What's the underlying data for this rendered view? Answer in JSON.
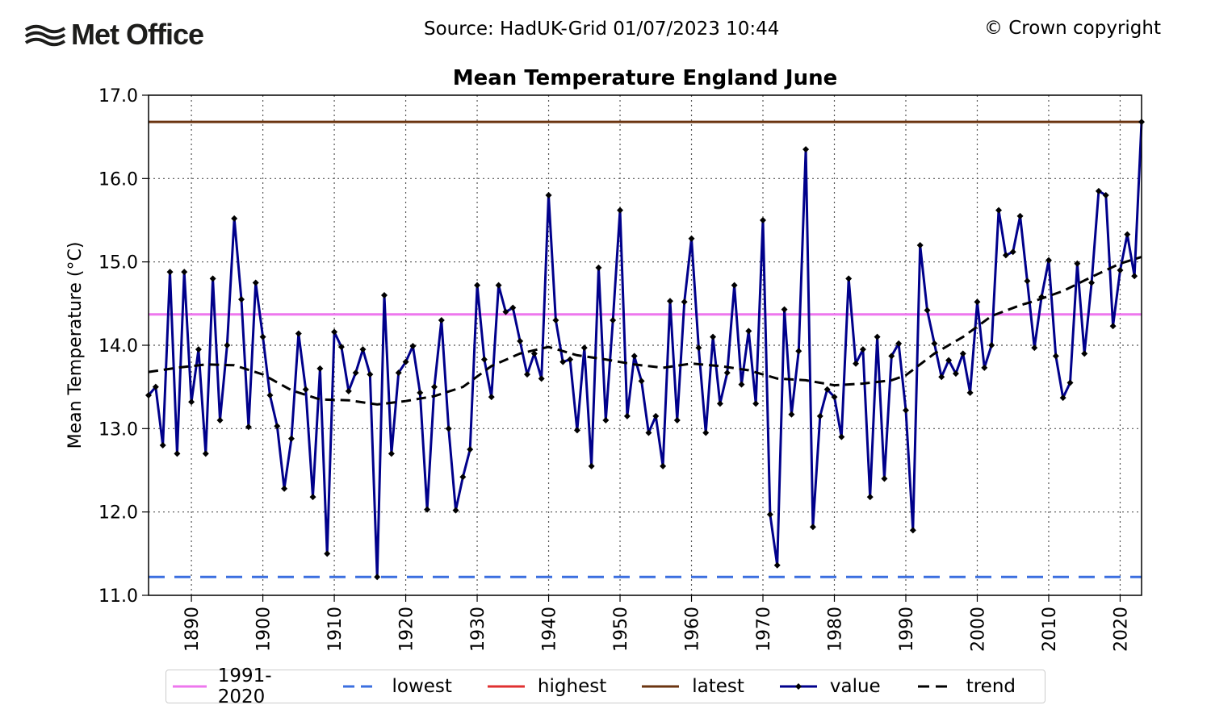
{
  "header": {
    "logo_text": "Met Office",
    "source": "Source: HadUK-Grid 01/07/2023 10:44",
    "copyright": "© Crown copyright"
  },
  "chart_data": {
    "type": "line",
    "title": "Mean Temperature England June",
    "xlabel": "",
    "ylabel": "Mean Temperature (°C)",
    "xlim": [
      1884,
      2023
    ],
    "ylim": [
      11.0,
      17.0
    ],
    "x_ticks": [
      1890,
      1900,
      1910,
      1920,
      1930,
      1940,
      1950,
      1960,
      1970,
      1980,
      1990,
      2000,
      2010,
      2020
    ],
    "y_ticks": [
      "11.0",
      "12.0",
      "13.0",
      "14.0",
      "15.0",
      "16.0",
      "17.0"
    ],
    "grid": true,
    "legend_position": "bottom",
    "reference_lines": [
      {
        "name": "1991-2020",
        "value": 14.37,
        "color": "#ee77ee",
        "style": "solid"
      },
      {
        "name": "lowest",
        "value": 11.22,
        "color": "#3b6fe0",
        "style": "dashed"
      },
      {
        "name": "highest",
        "value": 16.68,
        "color": "#e03030",
        "style": "solid"
      },
      {
        "name": "latest",
        "value": 16.68,
        "color": "#6b3510",
        "style": "solid"
      }
    ],
    "series": [
      {
        "name": "value",
        "color": "#00008b",
        "marker": "diamond",
        "x": [
          1884,
          1885,
          1886,
          1887,
          1888,
          1889,
          1890,
          1891,
          1892,
          1893,
          1894,
          1895,
          1896,
          1897,
          1898,
          1899,
          1900,
          1901,
          1902,
          1903,
          1904,
          1905,
          1906,
          1907,
          1908,
          1909,
          1910,
          1911,
          1912,
          1913,
          1914,
          1915,
          1916,
          1917,
          1918,
          1919,
          1920,
          1921,
          1922,
          1923,
          1924,
          1925,
          1926,
          1927,
          1928,
          1929,
          1930,
          1931,
          1932,
          1933,
          1934,
          1935,
          1936,
          1937,
          1938,
          1939,
          1940,
          1941,
          1942,
          1943,
          1944,
          1945,
          1946,
          1947,
          1948,
          1949,
          1950,
          1951,
          1952,
          1953,
          1954,
          1955,
          1956,
          1957,
          1958,
          1959,
          1960,
          1961,
          1962,
          1963,
          1964,
          1965,
          1966,
          1967,
          1968,
          1969,
          1970,
          1971,
          1972,
          1973,
          1974,
          1975,
          1976,
          1977,
          1978,
          1979,
          1980,
          1981,
          1982,
          1983,
          1984,
          1985,
          1986,
          1987,
          1988,
          1989,
          1990,
          1991,
          1992,
          1993,
          1994,
          1995,
          1996,
          1997,
          1998,
          1999,
          2000,
          2001,
          2002,
          2003,
          2004,
          2005,
          2006,
          2007,
          2008,
          2009,
          2010,
          2011,
          2012,
          2013,
          2014,
          2015,
          2016,
          2017,
          2018,
          2019,
          2020,
          2021,
          2022,
          2023
        ],
        "values": [
          13.4,
          13.5,
          12.8,
          14.88,
          12.7,
          14.88,
          13.32,
          13.95,
          12.7,
          14.8,
          13.1,
          14.0,
          15.52,
          14.55,
          13.02,
          14.75,
          14.1,
          13.4,
          13.03,
          12.28,
          12.88,
          14.14,
          13.47,
          12.18,
          13.72,
          11.5,
          14.16,
          13.98,
          13.45,
          13.67,
          13.95,
          13.65,
          11.22,
          14.6,
          12.7,
          13.67,
          13.8,
          13.99,
          13.43,
          12.03,
          13.5,
          14.3,
          13.0,
          12.02,
          12.42,
          12.75,
          14.72,
          13.83,
          13.38,
          14.72,
          14.4,
          14.45,
          14.05,
          13.65,
          13.9,
          13.6,
          15.8,
          14.3,
          13.8,
          13.83,
          12.98,
          13.97,
          12.55,
          14.93,
          13.1,
          14.3,
          15.62,
          13.15,
          13.87,
          13.57,
          12.95,
          13.15,
          12.55,
          14.53,
          13.1,
          14.52,
          15.28,
          13.97,
          12.95,
          14.1,
          13.3,
          13.67,
          14.72,
          13.53,
          14.17,
          13.3,
          15.5,
          11.97,
          11.36,
          14.43,
          13.17,
          13.93,
          16.35,
          11.82,
          13.15,
          13.47,
          13.38,
          12.9,
          14.8,
          13.78,
          13.95,
          12.18,
          14.1,
          12.4,
          13.87,
          14.02,
          13.22,
          11.78,
          15.2,
          14.42,
          14.02,
          13.62,
          13.82,
          13.66,
          13.9,
          13.43,
          14.52,
          13.73,
          14.0,
          15.62,
          15.08,
          15.12,
          15.55,
          14.77,
          13.97,
          14.58,
          15.02,
          13.87,
          13.37,
          13.55,
          14.98,
          13.9,
          14.75,
          15.85,
          15.8,
          14.23,
          14.9,
          15.33,
          14.83,
          16.68
        ]
      },
      {
        "name": "trend",
        "color": "#000000",
        "style": "dashed",
        "x": [
          1884,
          1888,
          1892,
          1896,
          1900,
          1904,
          1908,
          1912,
          1916,
          1920,
          1924,
          1928,
          1932,
          1936,
          1940,
          1944,
          1948,
          1952,
          1956,
          1960,
          1964,
          1968,
          1972,
          1976,
          1980,
          1984,
          1988,
          1990,
          1994,
          1998,
          2002,
          2006,
          2008,
          2012,
          2016,
          2020,
          2023
        ],
        "values": [
          13.68,
          13.73,
          13.77,
          13.76,
          13.65,
          13.46,
          13.35,
          13.34,
          13.29,
          13.33,
          13.39,
          13.5,
          13.75,
          13.9,
          13.98,
          13.88,
          13.83,
          13.77,
          13.73,
          13.78,
          13.75,
          13.7,
          13.6,
          13.58,
          13.52,
          13.54,
          13.58,
          13.64,
          13.9,
          14.1,
          14.35,
          14.48,
          14.53,
          14.65,
          14.82,
          14.98,
          15.06
        ]
      }
    ]
  }
}
